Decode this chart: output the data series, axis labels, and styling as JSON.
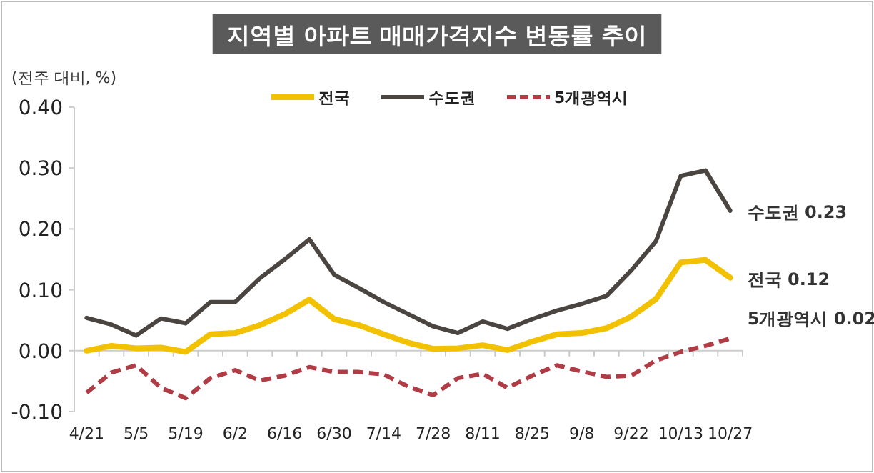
{
  "chart_data": {
    "type": "line",
    "title": "지역별 아파트 매매가격지수 변동률 추이",
    "ylabel": "(전주 대비, %)",
    "categories": [
      "4/21",
      null,
      "5/5",
      null,
      "5/19",
      null,
      "6/2",
      null,
      "6/16",
      null,
      "6/30",
      null,
      "7/14",
      null,
      "7/28",
      null,
      "8/11",
      null,
      "8/25",
      null,
      "9/8",
      null,
      "9/22",
      null,
      "10/13",
      null,
      "10/27"
    ],
    "series": [
      {
        "name": "전국",
        "color": "#f2c200",
        "line_style": "solid",
        "values": [
          0.0,
          0.008,
          0.004,
          0.005,
          -0.002,
          0.027,
          0.029,
          0.042,
          0.06,
          0.084,
          0.052,
          0.042,
          0.027,
          0.013,
          0.003,
          0.004,
          0.009,
          0.001,
          0.015,
          0.027,
          0.029,
          0.037,
          0.056,
          0.085,
          0.145,
          0.149,
          0.12
        ]
      },
      {
        "name": "수도권",
        "color": "#4a4540",
        "line_style": "solid",
        "values": [
          0.054,
          0.043,
          0.025,
          0.053,
          0.045,
          0.08,
          0.08,
          0.119,
          0.15,
          0.183,
          0.125,
          0.103,
          0.08,
          0.06,
          0.04,
          0.029,
          0.048,
          0.036,
          0.052,
          0.066,
          0.077,
          0.09,
          0.132,
          0.18,
          0.287,
          0.296,
          0.23
        ]
      },
      {
        "name": "5개광역시",
        "color": "#b03c46",
        "line_style": "dashed",
        "values": [
          -0.069,
          -0.036,
          -0.024,
          -0.061,
          -0.078,
          -0.045,
          -0.032,
          -0.049,
          -0.041,
          -0.027,
          -0.035,
          -0.035,
          -0.039,
          -0.059,
          -0.073,
          -0.045,
          -0.038,
          -0.061,
          -0.041,
          -0.024,
          -0.034,
          -0.043,
          -0.041,
          -0.016,
          -0.002,
          0.008,
          0.02
        ]
      }
    ],
    "ylim": [
      -0.1,
      0.4
    ],
    "yticks": [
      {
        "value": -0.1,
        "label": "-0.10"
      },
      {
        "value": 0,
        "label": "0.00"
      },
      {
        "value": 0.1,
        "label": "0.10"
      },
      {
        "value": 0.2,
        "label": "0.20"
      },
      {
        "value": 0.3,
        "label": "0.30"
      },
      {
        "value": 0.4,
        "label": "0.40"
      }
    ],
    "legend": "top",
    "marker": "none",
    "annotations": [
      {
        "text": "수도권 0.23",
        "x": "10/27",
        "y": 0.23
      },
      {
        "text": "전국 0.12",
        "x": "10/27",
        "y": 0.12
      },
      {
        "text": "5개광역시 0.02",
        "x": "10/27",
        "y": 0.02
      }
    ]
  }
}
